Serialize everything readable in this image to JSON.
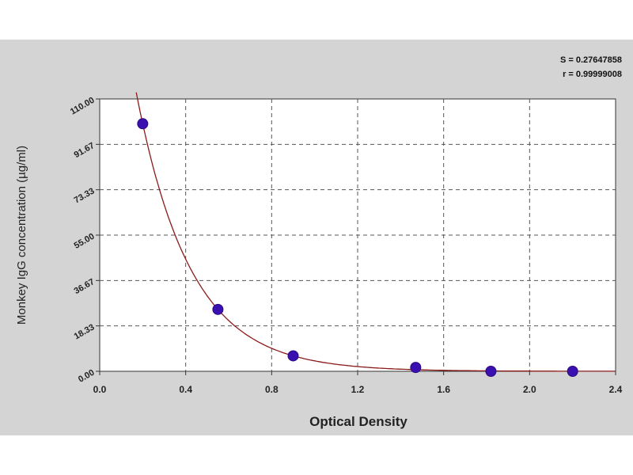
{
  "stats": {
    "s_text": "S = 0.27647858",
    "r_text": "r = 0.99999008"
  },
  "chart_data": {
    "type": "scatter",
    "xlabel": "Optical Density",
    "ylabel": "Monkey IgG concentration (µg/ml)",
    "xlim": [
      0,
      2.4
    ],
    "ylim": [
      0,
      110
    ],
    "x_ticks": [
      "0.0",
      "0.4",
      "0.8",
      "1.2",
      "1.6",
      "2.0",
      "2.4"
    ],
    "y_ticks": [
      "0.00",
      "18.33",
      "36.67",
      "55.00",
      "73.33",
      "91.67",
      "110.00"
    ],
    "grid": true,
    "series": [
      {
        "points": [
          {
            "x": 0.2,
            "y": 100.0
          },
          {
            "x": 0.55,
            "y": 25.0
          },
          {
            "x": 0.9,
            "y": 6.25
          },
          {
            "x": 1.47,
            "y": 1.56
          },
          {
            "x": 1.82,
            "y": 0.0
          },
          {
            "x": 2.2,
            "y": 0.0
          }
        ]
      }
    ],
    "fit_curve": {
      "type": "exponential-decay"
    },
    "colors": {
      "points": "#3a10b0",
      "curve": "#8b1a1a",
      "plot_bg": "#ffffff",
      "panel_bg": "#d4d4d4"
    }
  }
}
